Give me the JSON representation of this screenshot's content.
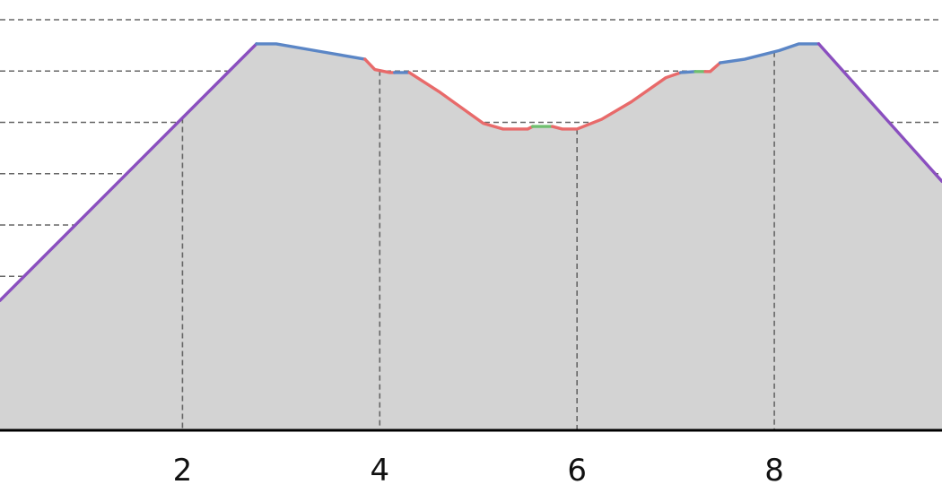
{
  "chart_data": {
    "type": "area",
    "title": "",
    "xlabel": "",
    "ylabel": "",
    "xlim": [
      0.15,
      9.7
    ],
    "ylim": [
      0,
      8
    ],
    "x_ticks": [
      2,
      4,
      6,
      8
    ],
    "x_tick_labels": [
      "2",
      "4",
      "6",
      "8"
    ],
    "y_gridlines": [
      1,
      2,
      3,
      4,
      5,
      6,
      7,
      8
    ],
    "grid": true,
    "fill_color": "#d3d3d3",
    "points": [
      {
        "x": 0.15,
        "y": 2.53
      },
      {
        "x": 2.75,
        "y": 7.53
      },
      {
        "x": 2.95,
        "y": 7.53
      },
      {
        "x": 3.4,
        "y": 7.38
      },
      {
        "x": 3.85,
        "y": 7.23
      },
      {
        "x": 3.95,
        "y": 7.03
      },
      {
        "x": 4.1,
        "y": 6.97
      },
      {
        "x": 4.3,
        "y": 6.97
      },
      {
        "x": 4.6,
        "y": 6.6
      },
      {
        "x": 5.05,
        "y": 5.98
      },
      {
        "x": 5.25,
        "y": 5.87
      },
      {
        "x": 5.5,
        "y": 5.87
      },
      {
        "x": 5.55,
        "y": 5.92
      },
      {
        "x": 5.75,
        "y": 5.92
      },
      {
        "x": 5.85,
        "y": 5.87
      },
      {
        "x": 6.0,
        "y": 5.87
      },
      {
        "x": 6.25,
        "y": 6.06
      },
      {
        "x": 6.55,
        "y": 6.4
      },
      {
        "x": 6.9,
        "y": 6.87
      },
      {
        "x": 7.05,
        "y": 6.97
      },
      {
        "x": 7.2,
        "y": 6.99
      },
      {
        "x": 7.35,
        "y": 6.99
      },
      {
        "x": 7.45,
        "y": 7.16
      },
      {
        "x": 7.7,
        "y": 7.23
      },
      {
        "x": 8.05,
        "y": 7.4
      },
      {
        "x": 8.25,
        "y": 7.53
      },
      {
        "x": 8.45,
        "y": 7.53
      },
      {
        "x": 9.7,
        "y": 4.85
      }
    ],
    "segments": [
      {
        "from": 0.15,
        "to": 2.75,
        "color": "#8a4fbf"
      },
      {
        "from": 2.75,
        "to": 3.85,
        "color": "#5b86c6"
      },
      {
        "from": 3.85,
        "to": 4.15,
        "color": "#e86a6a"
      },
      {
        "from": 4.15,
        "to": 4.3,
        "color": "#5b86c6"
      },
      {
        "from": 4.3,
        "to": 5.55,
        "color": "#e86a6a"
      },
      {
        "from": 5.55,
        "to": 5.75,
        "color": "#6fbf6f"
      },
      {
        "from": 5.75,
        "to": 7.05,
        "color": "#e86a6a"
      },
      {
        "from": 7.05,
        "to": 7.2,
        "color": "#5b86c6"
      },
      {
        "from": 7.2,
        "to": 7.3,
        "color": "#6fbf6f"
      },
      {
        "from": 7.3,
        "to": 7.45,
        "color": "#e86a6a"
      },
      {
        "from": 7.45,
        "to": 8.45,
        "color": "#5b86c6"
      },
      {
        "from": 8.45,
        "to": 9.7,
        "color": "#8a4fbf"
      }
    ]
  }
}
